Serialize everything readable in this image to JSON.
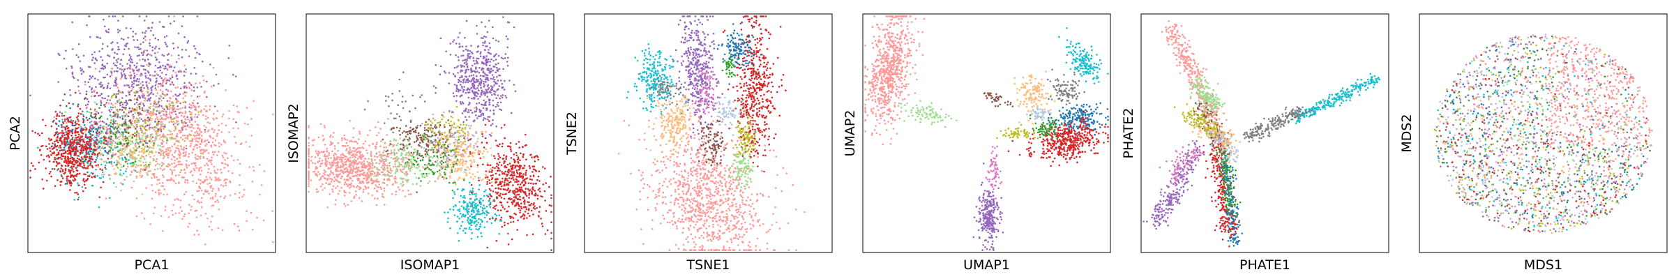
{
  "palette": {
    "salmon": "#ff9896",
    "purple": "#9467bd",
    "red": "#d62728",
    "cyan": "#17becf",
    "blue": "#1f77b4",
    "green": "#2ca02c",
    "orange_light": "#ffbb78",
    "brown": "#8c564b",
    "olive": "#bcbd22",
    "gray": "#7f7f7f",
    "pink": "#e377c2",
    "light_green": "#98df8a",
    "light_blue": "#aec7e8",
    "light_purple": "#c5b0d5",
    "orange": "#ff7f0e"
  },
  "chart_data": [
    {
      "type": "scatter",
      "xlabel": "PCA1",
      "ylabel": "PCA2",
      "ticks": "none",
      "grid": false,
      "legend": "none"
    },
    {
      "type": "scatter",
      "xlabel": "ISOMAP1",
      "ylabel": "ISOMAP2",
      "ticks": "none",
      "grid": false,
      "legend": "none"
    },
    {
      "type": "scatter",
      "xlabel": "TSNE1",
      "ylabel": "TSNE2",
      "ticks": "none",
      "grid": false,
      "legend": "none"
    },
    {
      "type": "scatter",
      "xlabel": "UMAP1",
      "ylabel": "UMAP2",
      "ticks": "none",
      "grid": false,
      "legend": "none"
    },
    {
      "type": "scatter",
      "xlabel": "PHATE1",
      "ylabel": "PHATE2",
      "ticks": "none",
      "grid": false,
      "legend": "none"
    },
    {
      "type": "scatter",
      "xlabel": "MDS1",
      "ylabel": "MDS2",
      "ticks": "none",
      "grid": false,
      "legend": "none"
    }
  ]
}
